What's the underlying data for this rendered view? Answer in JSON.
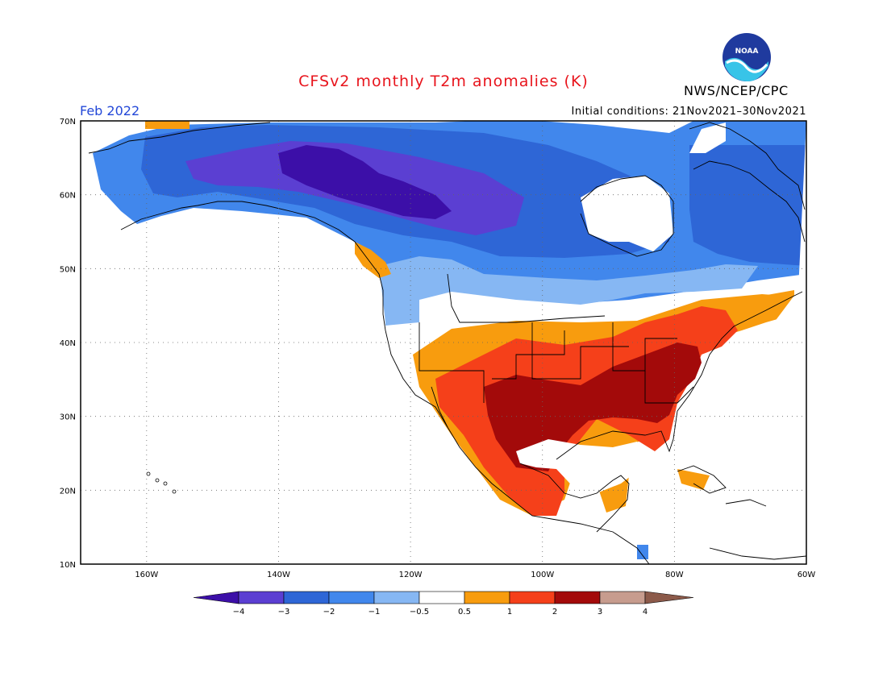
{
  "header": {
    "title": "CFSv2 monthly T2m anomalies (K)",
    "forecast_month": "Feb 2022",
    "initial_conditions": "Initial conditions: 21Nov2021–30Nov2021",
    "agency": "NWS/NCEP/CPC",
    "logo_text": "NOAA"
  },
  "map": {
    "lon_labels": [
      "160W",
      "140W",
      "120W",
      "100W",
      "80W",
      "60W"
    ],
    "lat_labels": [
      "70N",
      "60N",
      "50N",
      "40N",
      "30N",
      "20N",
      "10N"
    ]
  },
  "colorbar": {
    "tick_labels": [
      "−4",
      "−3",
      "−2",
      "−1",
      "−0.5",
      "0.5",
      "1",
      "2",
      "3",
      "4"
    ],
    "colors": [
      "#3c0fa8",
      "#5b3fd2",
      "#2e66d6",
      "#4187ec",
      "#86b7f3",
      "#ffffff",
      "#f89c0e",
      "#f5401a",
      "#a30a0a",
      "#c79c8e",
      "#8c5a4a"
    ]
  }
}
